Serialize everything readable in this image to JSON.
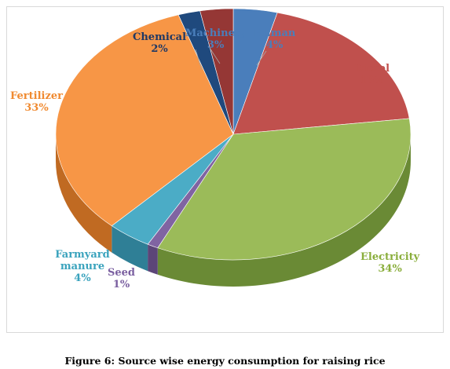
{
  "chart_data": {
    "type": "pie",
    "style": "3d",
    "title": "",
    "caption": "Figure 6: Source wise energy consumption for raising rice",
    "slices": [
      {
        "label": "Human",
        "value": 4,
        "display": "4%",
        "color": "#4a7ebb",
        "side": "#2f5a8f",
        "text_color": "#4a7ebb"
      },
      {
        "label": "Diesel",
        "value": 19,
        "display": "19%",
        "color": "#c0504d",
        "side": "#8e3331",
        "text_color": "#c0504d"
      },
      {
        "label": "Electricity",
        "value": 34,
        "display": "34%",
        "color": "#9bbb59",
        "side": "#6a8a35",
        "text_color": "#8aae3c"
      },
      {
        "label": "Seed",
        "value": 1,
        "display": "1%",
        "color": "#8064a2",
        "side": "#5c4578",
        "text_color": "#7a5fa0"
      },
      {
        "label": "Farmyard manure",
        "value": 4,
        "display": "4%",
        "color": "#4bacc6",
        "side": "#2f7f96",
        "text_color": "#3aa3bd"
      },
      {
        "label": "Fertilizer",
        "value": 33,
        "display": "33%",
        "color": "#f79646",
        "side": "#c06a22",
        "text_color": "#f08a30"
      },
      {
        "label": "Chemical",
        "value": 2,
        "display": "2%",
        "color": "#1f497d",
        "side": "#132d4e",
        "text_color": "#1f3864"
      },
      {
        "label": "Machinery",
        "value": 3,
        "display": "3%",
        "color": "#953735",
        "side": "#6a2422",
        "text_color": "#4a7ebb"
      }
    ]
  }
}
